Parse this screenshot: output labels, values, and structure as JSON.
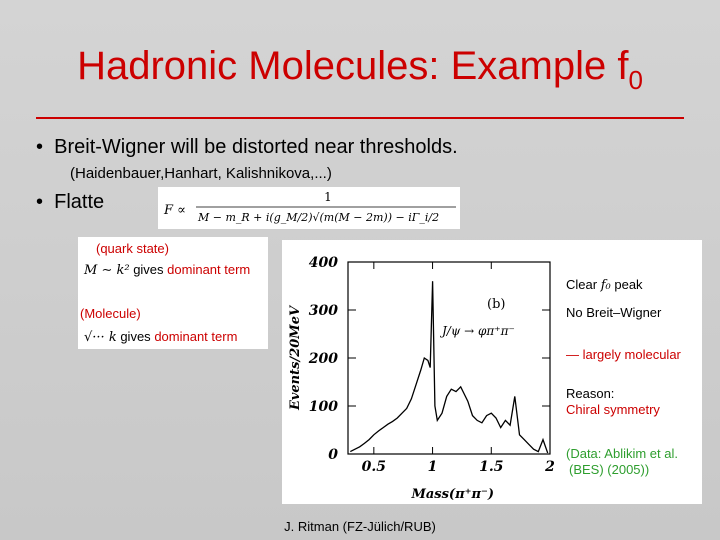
{
  "title": {
    "text": "Hadronic Molecules: Example f",
    "subscript": "0"
  },
  "bullets": [
    {
      "text": "Breit-Wigner will be distorted near thresholds."
    },
    {
      "text": "Flatte"
    }
  ],
  "reference": "(Haidenbauer,Hanhart, Kalishnikova,...)",
  "formula": {
    "lhs": "F ∝",
    "num": "1",
    "den": "M − m_R + i(g_M/2)√(m(M − 2m)) − iΓ_i/2"
  },
  "legend_box": {
    "quark_state": "(quark state)",
    "quark_expr": "M ∼ k²",
    "quark_gives": "gives",
    "quark_dominant": "dominant term",
    "molecule": "(Molecule)",
    "mol_expr": "√··· k",
    "mol_gives": "gives",
    "mol_dominant": "dominant term"
  },
  "annotations": {
    "clear_peak": "Clear",
    "f0": "f₀",
    "peak": "peak",
    "no_bw": "No Breit–Wigner",
    "molecular": "— largely molecular",
    "reason": "Reason:",
    "chiral": "Chiral symmetry",
    "data1": "(Data: Ablikim et al.",
    "data2": "(BES) (2005))"
  },
  "chart_data": {
    "type": "line",
    "panel_label": "(b)",
    "process": "J/ψ → φπ⁺π⁻",
    "xlabel": "Mass(π⁺π⁻)",
    "ylabel": "Events/20MeV",
    "xlim": [
      0.28,
      2.0
    ],
    "ylim": [
      0,
      400
    ],
    "xticks": [
      "0.5",
      "1",
      "1.5",
      "2"
    ],
    "xtick_values": [
      0.5,
      1.0,
      1.5,
      2.0
    ],
    "yticks": [
      "0",
      "100",
      "200",
      "300",
      "400"
    ],
    "ytick_values": [
      0,
      100,
      200,
      300,
      400
    ],
    "x": [
      0.3,
      0.34,
      0.38,
      0.42,
      0.46,
      0.5,
      0.54,
      0.58,
      0.62,
      0.66,
      0.7,
      0.74,
      0.78,
      0.82,
      0.86,
      0.9,
      0.93,
      0.96,
      0.98,
      1.0,
      1.02,
      1.04,
      1.08,
      1.12,
      1.16,
      1.2,
      1.24,
      1.28,
      1.3,
      1.34,
      1.38,
      1.42,
      1.46,
      1.5,
      1.54,
      1.58,
      1.62,
      1.66,
      1.7,
      1.74,
      1.78,
      1.82,
      1.86,
      1.9,
      1.94,
      1.98
    ],
    "y": [
      5,
      10,
      15,
      22,
      30,
      40,
      48,
      55,
      62,
      68,
      75,
      85,
      95,
      115,
      145,
      175,
      200,
      195,
      180,
      360,
      100,
      70,
      85,
      120,
      135,
      130,
      140,
      120,
      110,
      80,
      70,
      65,
      80,
      85,
      75,
      55,
      70,
      60,
      120,
      40,
      30,
      20,
      10,
      5,
      30,
      2
    ]
  },
  "footer": "J. Ritman  (FZ-Jülich/RUB)"
}
